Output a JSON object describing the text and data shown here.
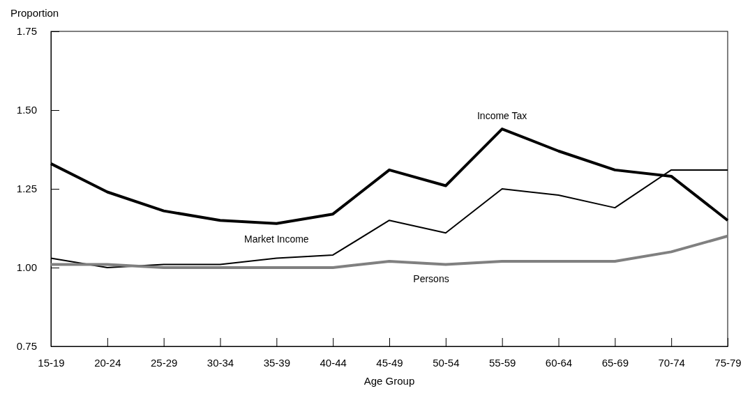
{
  "chart_data": {
    "type": "line",
    "xlabel": "Age Group",
    "ylabel": "Proportion",
    "categories": [
      "15-19",
      "20-24",
      "25-29",
      "30-34",
      "35-39",
      "40-44",
      "45-49",
      "50-54",
      "55-59",
      "60-64",
      "65-69",
      "70-74",
      "75-79"
    ],
    "series": [
      {
        "name": "Income Tax",
        "color": "#000000",
        "values": [
          1.33,
          1.24,
          1.18,
          1.15,
          1.14,
          1.17,
          1.31,
          1.26,
          1.44,
          1.37,
          1.31,
          1.29,
          1.15
        ]
      },
      {
        "name": "Market Income",
        "color": "#000000",
        "values": [
          1.03,
          1.0,
          1.01,
          1.01,
          1.03,
          1.04,
          1.15,
          1.11,
          1.25,
          1.23,
          1.19,
          1.31,
          1.31
        ]
      },
      {
        "name": "Persons",
        "color": "#808080",
        "values": [
          1.01,
          1.01,
          1.0,
          1.0,
          1.0,
          1.0,
          1.02,
          1.01,
          1.02,
          1.02,
          1.02,
          1.05,
          1.1
        ]
      }
    ],
    "ylim": [
      0.75,
      1.75
    ],
    "yticks": [
      {
        "value": 0.75,
        "label": "0.75"
      },
      {
        "value": 1,
        "label": "1.00"
      },
      {
        "value": 1.25,
        "label": "1.25"
      },
      {
        "value": 1.5,
        "label": "1.50"
      },
      {
        "value": 1.75,
        "label": "1.75"
      }
    ],
    "grid": false,
    "legend": false,
    "marker": "none",
    "line_style": "solid"
  }
}
